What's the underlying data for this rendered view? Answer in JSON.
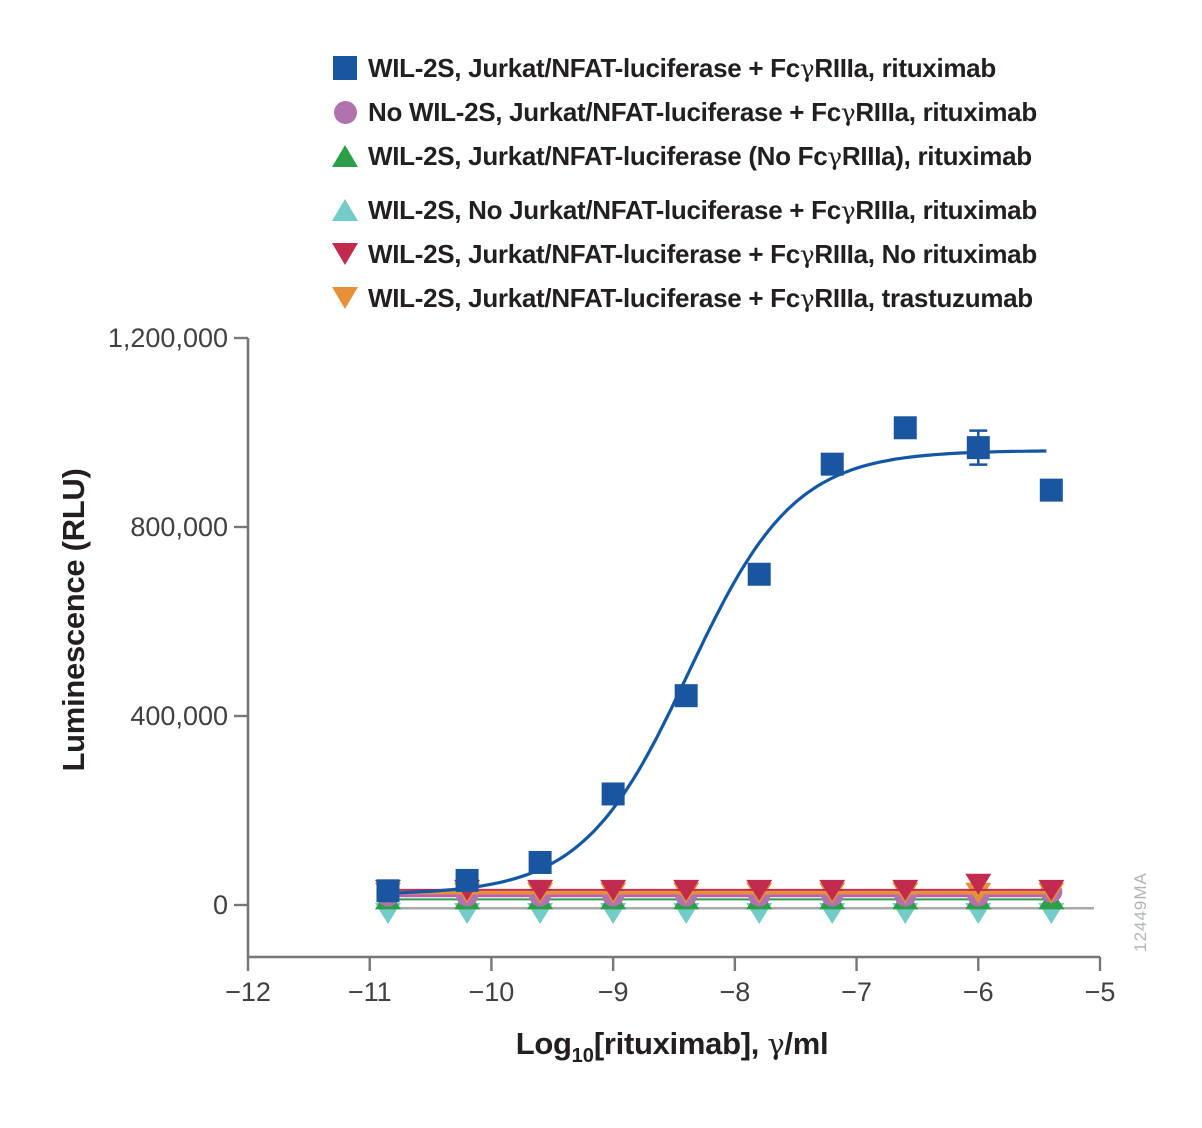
{
  "watermark": "12449MA",
  "legend": {
    "items": [
      {
        "label": "WIL-2S, Jurkat/NFAT-luciferase + FcγRIIIa, rituximab",
        "marker": "square",
        "color": "#1a55a0",
        "group": 1
      },
      {
        "label": "No WIL-2S, Jurkat/NFAT-luciferase + FcγRIIIa, rituximab",
        "marker": "circle",
        "color": "#b173ae",
        "group": 1
      },
      {
        "label": "WIL-2S, Jurkat/NFAT-luciferase (No FcγRIIIa), rituximab",
        "marker": "triangle-up",
        "color": "#2e9e48",
        "group": 1
      },
      {
        "label": "WIL-2S, No Jurkat/NFAT-luciferase + FcγRIIIa, rituximab",
        "marker": "triangle-up",
        "color": "#74ccc9",
        "group": 2
      },
      {
        "label": "WIL-2S, Jurkat/NFAT-luciferase + FcγRIIIa, No rituximab",
        "marker": "triangle-down",
        "color": "#c22b4d",
        "group": 2
      },
      {
        "label": "WIL-2S, Jurkat/NFAT-luciferase + FcγRIIIa, trastuzumab",
        "marker": "triangle-down",
        "color": "#e89038",
        "group": 2
      }
    ]
  },
  "chart_data": {
    "type": "scatter",
    "title": "",
    "xlabel": "Log10[rituximab], γ/ml",
    "xlabel_parts": {
      "log": "Log",
      "sub": "10",
      "mid": "[rituximab], ",
      "gamma": "γ",
      "unit": "/ml"
    },
    "ylabel": "Luminescence (RLU)",
    "xlim": [
      -12,
      -5
    ],
    "ylim": [
      -110000,
      1200000
    ],
    "grid": false,
    "legend_position": "top",
    "xticks": [
      {
        "v": -12,
        "label": "−12"
      },
      {
        "v": -11,
        "label": "−11"
      },
      {
        "v": -10,
        "label": "−10"
      },
      {
        "v": -9,
        "label": "−9"
      },
      {
        "v": -8,
        "label": "−8"
      },
      {
        "v": -7,
        "label": "−7"
      },
      {
        "v": -6,
        "label": "−6"
      },
      {
        "v": -5,
        "label": "−5"
      }
    ],
    "yticks": [
      {
        "v": 0,
        "label": "0"
      },
      {
        "v": 400000,
        "label": "400,000"
      },
      {
        "v": 800000,
        "label": "800,000"
      },
      {
        "v": 1200000,
        "label": "1,200,000"
      }
    ],
    "x": [
      -10.85,
      -10.2,
      -9.6,
      -9.0,
      -8.4,
      -7.8,
      -7.2,
      -6.6,
      -6.0,
      -5.4
    ],
    "series": [
      {
        "name": "WIL-2S, No Jurkat/NFAT-luciferase + FcγRIIIa, rituximab",
        "legend_index": 3,
        "plot_marker": "triangle-down",
        "color": "#74ccc9",
        "line_color": "#a7a9ac",
        "line_width": 2.5,
        "line_value": -7000,
        "line_x": [
          -10.85,
          -5.05
        ],
        "values": [
          -17000,
          -17000,
          -17000,
          -17000,
          -17000,
          -17000,
          -17000,
          -17000,
          -17000,
          -17000
        ]
      },
      {
        "name": "WIL-2S, Jurkat/NFAT-luciferase (No FcγRIIIa), rituximab",
        "legend_index": 2,
        "plot_marker": "triangle-up",
        "color": "#2e9e48",
        "line_color": "#2e9e48",
        "line_width": 2,
        "line_value": 12000,
        "line_x": [
          -10.85,
          -5.35
        ],
        "values": [
          12000,
          12000,
          12000,
          12000,
          12000,
          12000,
          12000,
          12000,
          12000,
          12000
        ]
      },
      {
        "name": "No WIL-2S, Jurkat/NFAT-luciferase + FcγRIIIa, rituximab",
        "legend_index": 1,
        "plot_marker": "circle",
        "color": "#b173ae",
        "line_color": "#bc5fb4",
        "line_width": 3.5,
        "line_value": 20000,
        "line_x": [
          -10.85,
          -5.35
        ],
        "values": [
          20000,
          20000,
          20000,
          20000,
          20000,
          20000,
          20000,
          20000,
          20000,
          28000
        ]
      },
      {
        "name": "WIL-2S, Jurkat/NFAT-luciferase + FcγRIIIa, trastuzumab",
        "legend_index": 5,
        "plot_marker": "triangle-down",
        "color": "#e89038",
        "line_color": "#e89038",
        "line_width": 3.5,
        "line_value": 26000,
        "line_x": [
          -10.85,
          -5.35
        ],
        "values": [
          26000,
          26000,
          26000,
          26000,
          26000,
          26000,
          26000,
          26000,
          26000,
          26000
        ]
      },
      {
        "name": "WIL-2S, Jurkat/NFAT-luciferase + FcγRIIIa, No rituximab",
        "legend_index": 4,
        "plot_marker": "triangle-down",
        "color": "#c22b4d",
        "line_color": "#c22b4d",
        "line_width": 2,
        "line_value": 32000,
        "line_x": [
          -10.85,
          -5.35
        ],
        "values": [
          32000,
          32000,
          32000,
          32000,
          32000,
          32000,
          32000,
          32000,
          45000,
          32000
        ]
      },
      {
        "name": "WIL-2S, Jurkat/NFAT-luciferase + FcγRIIIa, rituximab",
        "legend_index": 0,
        "plot_marker": "square",
        "color": "#1a55a0",
        "line_color": "#1458a5",
        "line_width": 3.2,
        "curve_fit": {
          "bottom": 22000,
          "top": 962000,
          "logec50": -8.38,
          "hill": 1.0,
          "x_start": -10.88,
          "x_end": -5.41
        },
        "values": [
          30000,
          52000,
          90000,
          235000,
          443000,
          700000,
          933000,
          1010000,
          968000,
          878000
        ],
        "errors": [
          12000,
          0,
          0,
          0,
          0,
          0,
          16000,
          12000,
          36000,
          0
        ]
      }
    ]
  }
}
